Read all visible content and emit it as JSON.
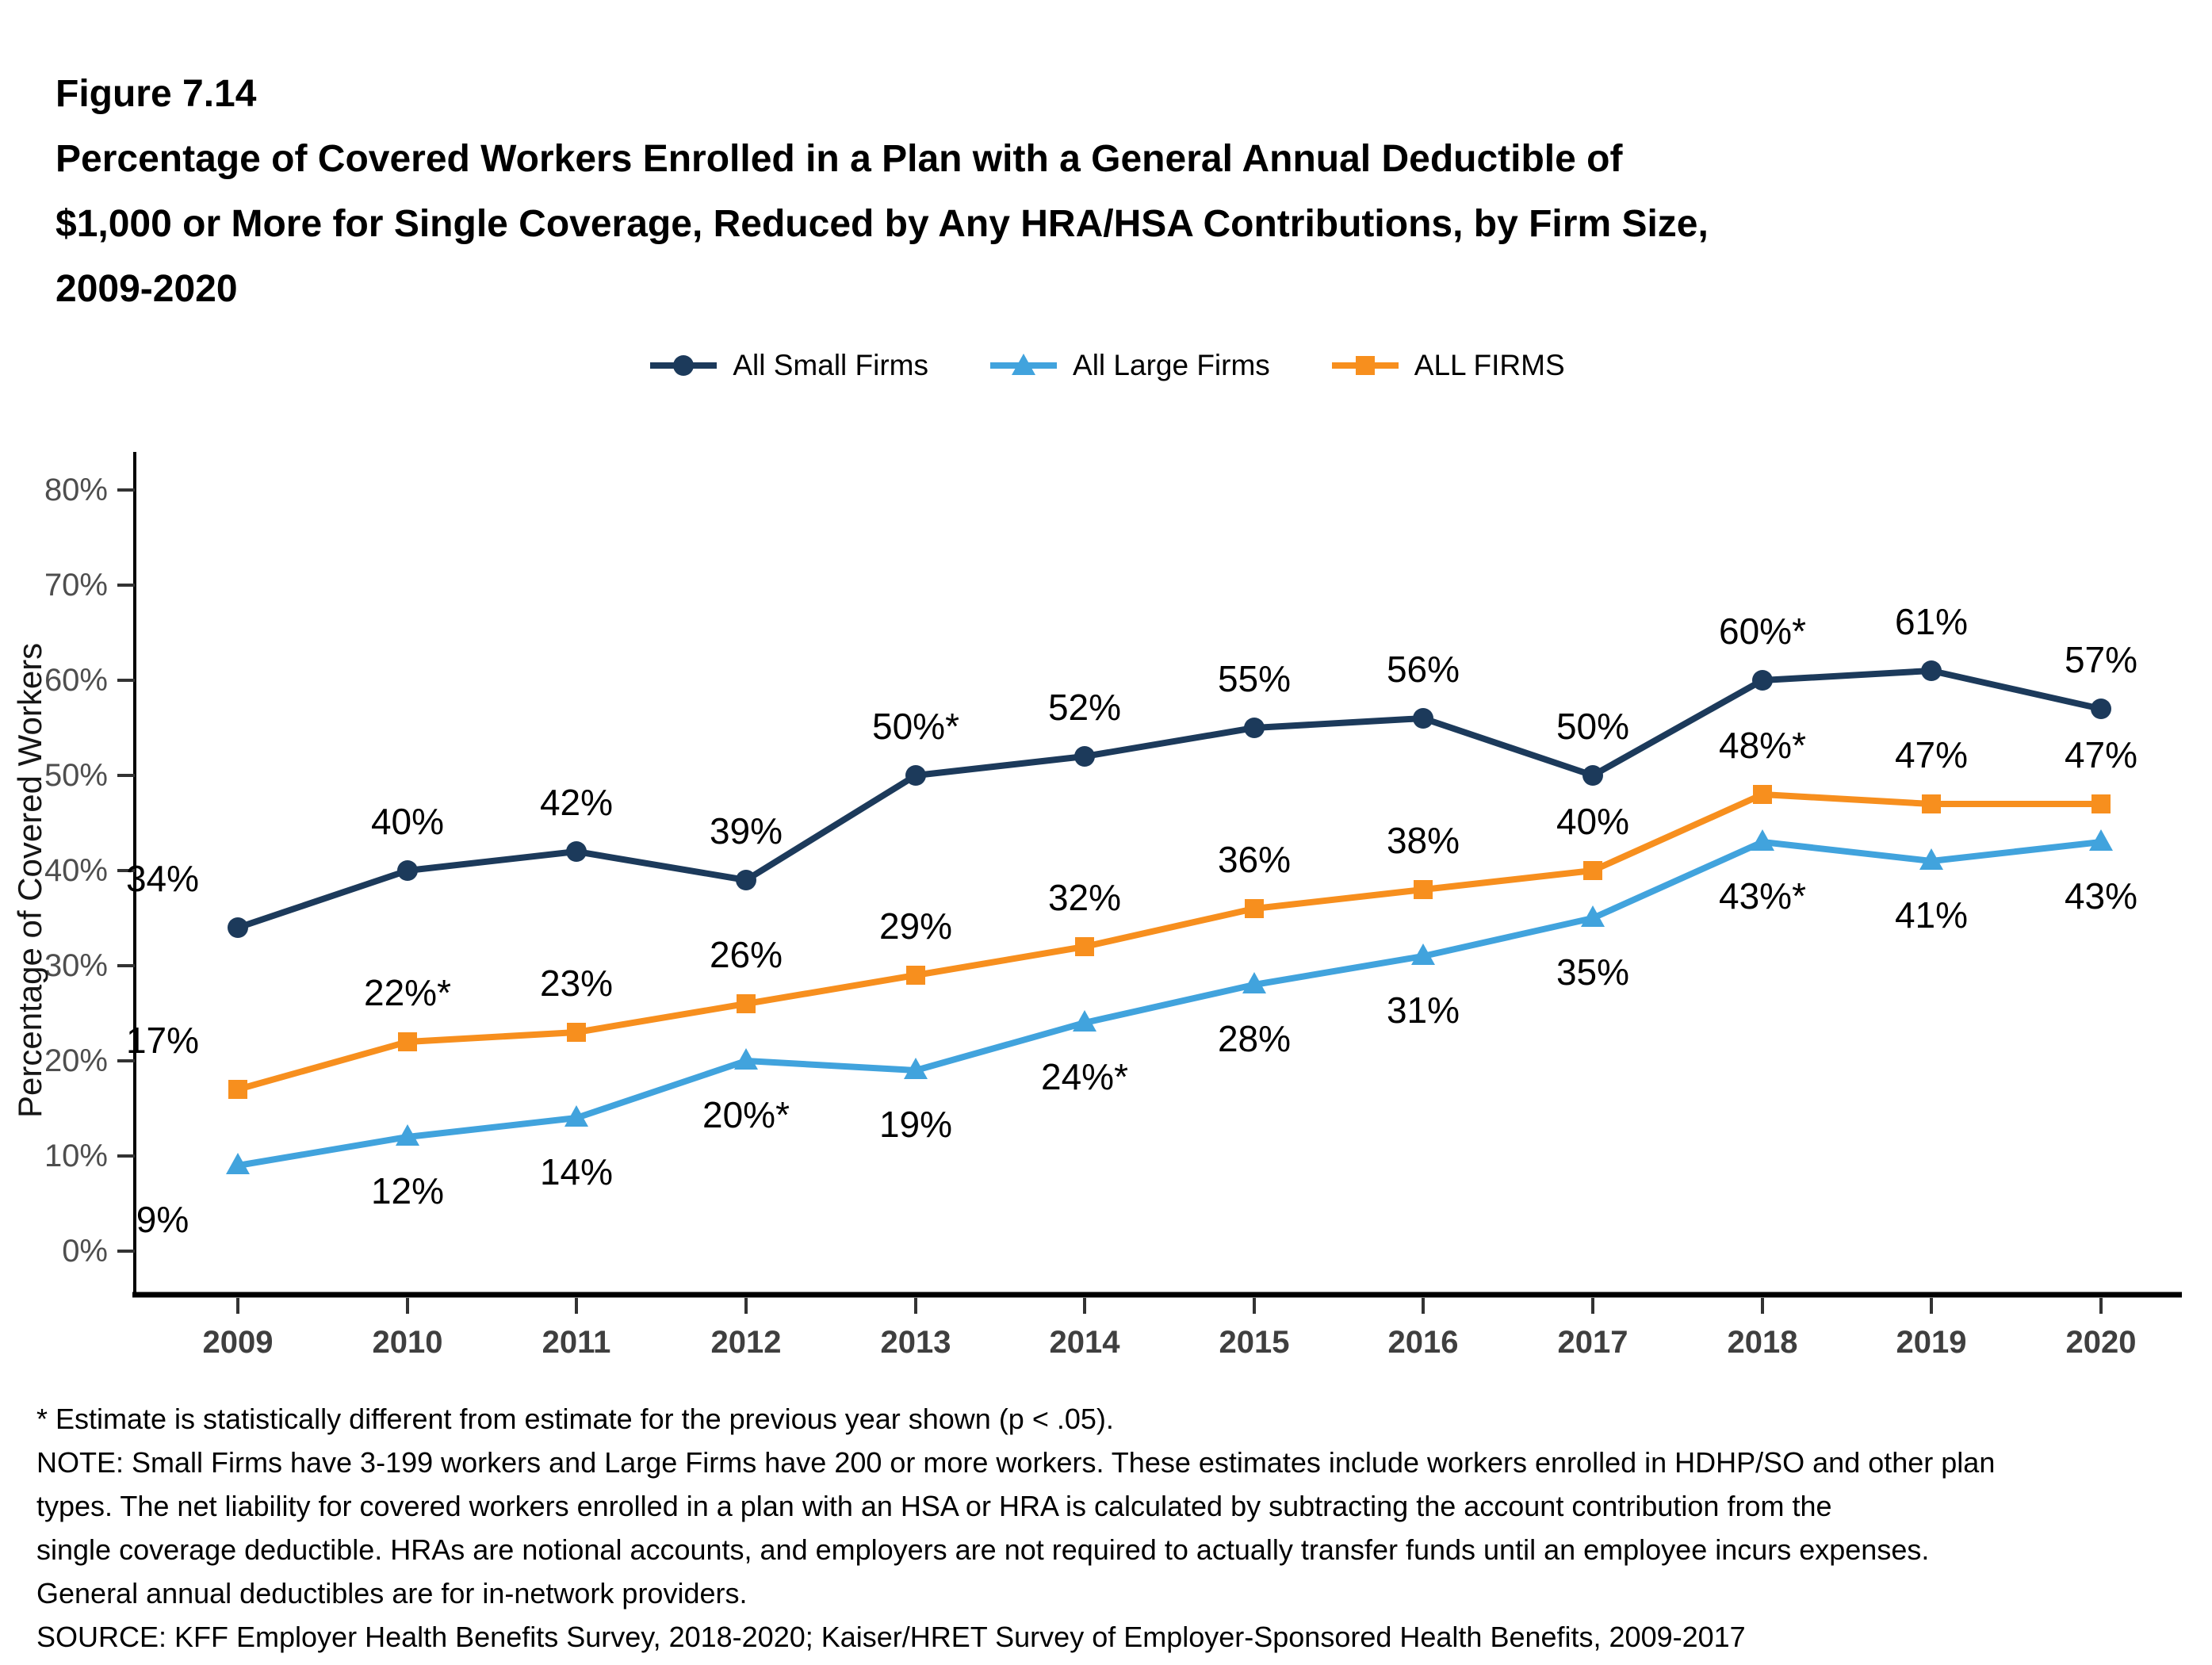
{
  "figure": {
    "label": "Figure 7.14",
    "title_lines": [
      "Percentage of Covered Workers Enrolled in a Plan with a General Annual Deductible of",
      "$1,000 or More for Single Coverage, Reduced by Any HRA/HSA Contributions, by Firm Size,",
      "2009-2020"
    ]
  },
  "chart_data": {
    "type": "line",
    "categories": [
      "2009",
      "2010",
      "2011",
      "2012",
      "2013",
      "2014",
      "2015",
      "2016",
      "2017",
      "2018",
      "2019",
      "2020"
    ],
    "series": [
      {
        "name": "All Small Firms",
        "color": "#1c3a5b",
        "marker": "circle",
        "values": [
          34,
          40,
          42,
          39,
          50,
          52,
          55,
          56,
          50,
          60,
          61,
          57
        ],
        "labels": [
          "34%",
          "40%",
          "42%",
          "39%",
          "50%*",
          "52%",
          "55%",
          "56%",
          "50%",
          "60%*",
          "61%",
          "57%"
        ],
        "label_position": "above"
      },
      {
        "name": "All Large Firms",
        "color": "#41a3dd",
        "marker": "triangle",
        "values": [
          9,
          12,
          14,
          20,
          19,
          24,
          28,
          31,
          35,
          43,
          41,
          43
        ],
        "labels": [
          "9%",
          "12%",
          "14%",
          "20%*",
          "19%",
          "24%*",
          "28%",
          "31%",
          "35%",
          "43%*",
          "41%",
          "43%"
        ],
        "label_position": "below"
      },
      {
        "name": "ALL FIRMS",
        "color": "#f78f1e",
        "marker": "square",
        "values": [
          17,
          22,
          23,
          26,
          29,
          32,
          36,
          38,
          40,
          48,
          47,
          47
        ],
        "labels": [
          "17%",
          "22%*",
          "23%",
          "26%",
          "29%",
          "32%",
          "36%",
          "38%",
          "40%",
          "48%*",
          "47%",
          "47%"
        ],
        "label_position": "above"
      }
    ],
    "title": "",
    "xlabel": "",
    "ylabel": "Percentage of Covered Workers",
    "ylim": [
      0,
      80
    ],
    "ytick_step": 10,
    "ytick_suffix": "%",
    "grid": false,
    "legend_position": "top"
  },
  "footnotes": {
    "lines": [
      "* Estimate is statistically different from estimate for the previous year shown (p < .05).",
      "NOTE: Small Firms have 3-199 workers and Large Firms have 200 or more workers. These estimates include workers enrolled in HDHP/SO and other plan",
      "types. The net liability for covered workers enrolled in a plan with an HSA or HRA is calculated by subtracting the account contribution from the",
      "single coverage deductible. HRAs are notional accounts, and employers are not required to actually transfer funds until an employee incurs expenses.",
      "General annual deductibles are for in-network providers.",
      "SOURCE: KFF Employer Health Benefits Survey, 2018-2020; Kaiser/HRET Survey of Employer-Sponsored Health Benefits, 2009-2017"
    ]
  }
}
